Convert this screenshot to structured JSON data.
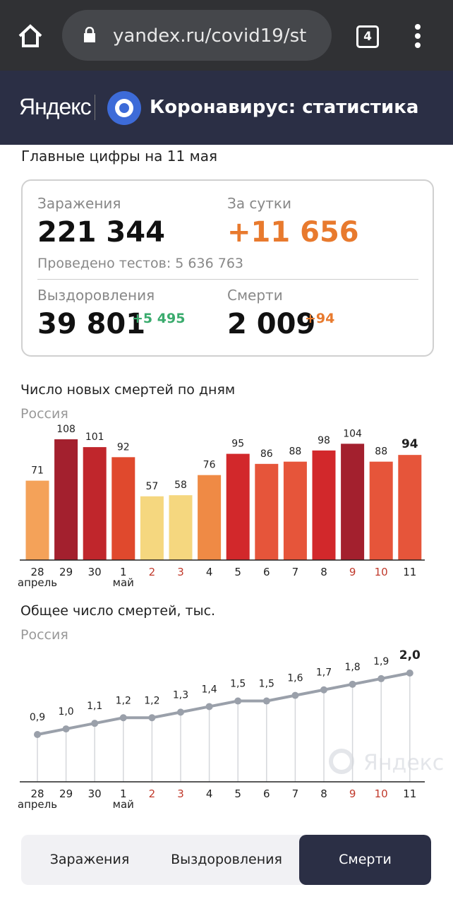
{
  "browser": {
    "url": "yandex.ru/covid19/st",
    "tabs": "4"
  },
  "header": {
    "logo": "Яндекс",
    "title": "Коронавирус: статистика"
  },
  "summary": {
    "heading": "Главные цифры на 11 мая",
    "cases_label": "Заражения",
    "cases": "221 344",
    "day_label": "За сутки",
    "day": "+11 656",
    "tests": "Проведено тестов: 5 636 763",
    "recovered_label": "Выздоровления",
    "recovered": "39 801",
    "recovered_delta": "+5 495",
    "deaths_label": "Смерти",
    "deaths": "2 009",
    "deaths_delta": "+94"
  },
  "charts": [
    {
      "type": "bar",
      "title": "Число новых смертей по дням",
      "subtitle": "Россия",
      "categories": [
        "28",
        "29",
        "30",
        "1",
        "2",
        "3",
        "4",
        "5",
        "6",
        "7",
        "8",
        "9",
        "10",
        "11"
      ],
      "months": [
        "апрель",
        null,
        null,
        "май",
        null,
        null,
        null,
        null,
        null,
        null,
        null,
        null,
        null,
        null
      ],
      "category_colors": [
        "#222",
        "#222",
        "#222",
        "#222",
        "#c0392b",
        "#c0392b",
        "#222",
        "#222",
        "#222",
        "#222",
        "#222",
        "#c0392b",
        "#c0392b",
        "#222"
      ],
      "values": [
        71,
        108,
        101,
        92,
        57,
        58,
        76,
        95,
        86,
        88,
        98,
        104,
        88,
        94
      ],
      "colors": [
        "#f4a259",
        "#a3202e",
        "#c0262c",
        "#e0492d",
        "#f5d77f",
        "#f5d77f",
        "#ef8a45",
        "#d2282b",
        "#e6553a",
        "#e6553a",
        "#d2282b",
        "#a3202e",
        "#e6553a",
        "#e6553a"
      ]
    },
    {
      "type": "line",
      "title": "Общее число смертей, тыс.",
      "subtitle": "Россия",
      "watermark": "Яндекс",
      "categories": [
        "28",
        "29",
        "30",
        "1",
        "2",
        "3",
        "4",
        "5",
        "6",
        "7",
        "8",
        "9",
        "10",
        "11"
      ],
      "months": [
        "апрель",
        null,
        null,
        "май",
        null,
        null,
        null,
        null,
        null,
        null,
        null,
        null,
        null,
        null
      ],
      "category_colors": [
        "#222",
        "#222",
        "#222",
        "#222",
        "#c0392b",
        "#c0392b",
        "#222",
        "#222",
        "#222",
        "#222",
        "#222",
        "#c0392b",
        "#c0392b",
        "#222"
      ],
      "values": [
        0.9,
        1.0,
        1.1,
        1.2,
        1.2,
        1.3,
        1.4,
        1.5,
        1.5,
        1.6,
        1.7,
        1.8,
        1.9,
        2.0
      ],
      "value_labels": [
        "0,9",
        "1,0",
        "1,1",
        "1,2",
        "1,2",
        "1,3",
        "1,4",
        "1,5",
        "1,5",
        "1,6",
        "1,7",
        "1,8",
        "1,9",
        "2,0"
      ],
      "color": "#9aa0aa"
    }
  ],
  "tabs": {
    "items": [
      "Заражения",
      "Выздоровления",
      "Смерти"
    ],
    "active": 2
  }
}
